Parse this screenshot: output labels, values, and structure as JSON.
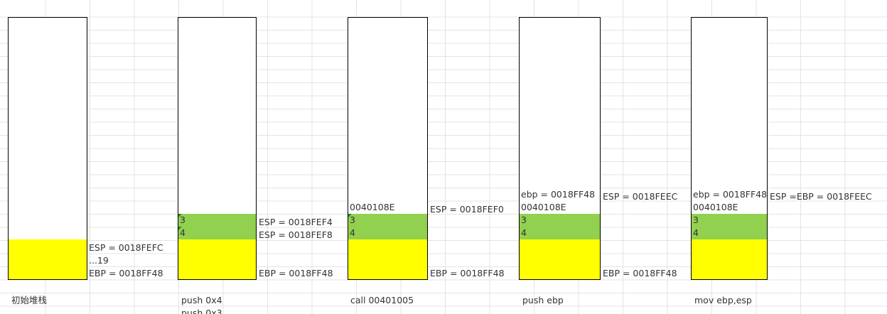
{
  "stages": [
    {
      "caption": "初始堆栈",
      "cells": [],
      "labels": [
        "ESP = 0018FEFC",
        "...19",
        "EBP = 0018FF48"
      ]
    },
    {
      "caption": "push 0x4",
      "caption_continued": "push 0x3",
      "cells": [
        "3",
        "4"
      ],
      "labels": [
        "ESP = 0018FEF4",
        "ESP = 0018FEF8",
        "EBP = 0018FF48"
      ]
    },
    {
      "caption": "call 00401005",
      "cells": [
        "0040108E",
        "3",
        "4"
      ],
      "labels": [
        "ESP = 0018FEF0",
        "EBP = 0018FF48"
      ]
    },
    {
      "caption": "push ebp",
      "cells": [
        "ebp = 0018FF48",
        "0040108E",
        "3",
        "4"
      ],
      "labels": [
        "ESP = 0018FEEC",
        "EBP = 0018FF48"
      ]
    },
    {
      "caption": "mov ebp,esp",
      "cells": [
        "ebp = 0018FF48",
        "0040108E",
        "3",
        "4"
      ],
      "labels": [
        "ESP =EBP =  0018FEEC"
      ]
    }
  ],
  "colors": {
    "stack_used": "#ffff00",
    "stack_pushed": "#92d050",
    "border": "#000000"
  }
}
